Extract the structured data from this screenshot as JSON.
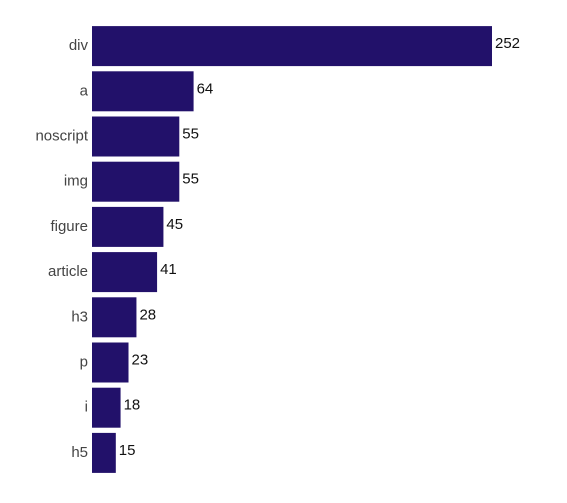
{
  "chart_data": {
    "type": "bar",
    "orientation": "horizontal",
    "categories": [
      "div",
      "a",
      "noscript",
      "img",
      "figure",
      "article",
      "h3",
      "p",
      "i",
      "h5"
    ],
    "values": [
      252,
      64,
      55,
      55,
      45,
      41,
      28,
      23,
      18,
      15
    ],
    "color": "#22116a"
  }
}
